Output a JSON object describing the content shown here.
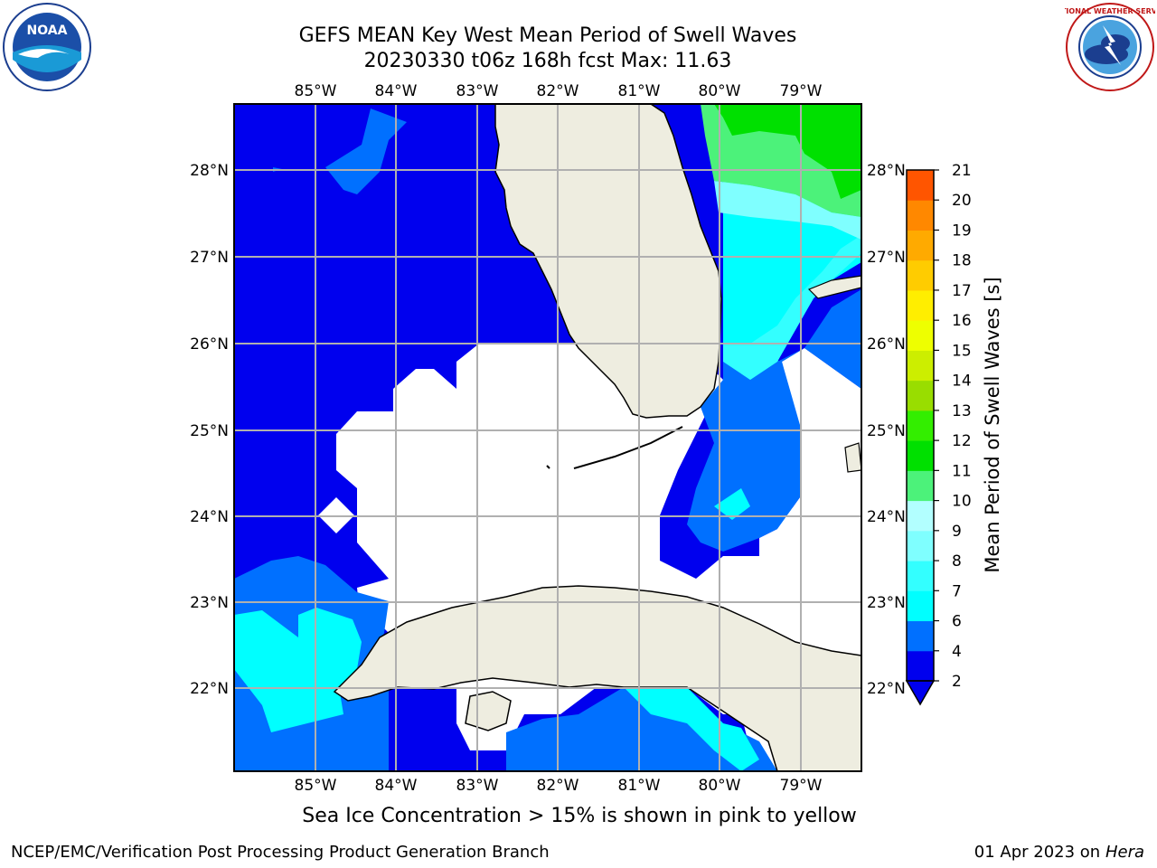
{
  "title": {
    "line1": "GEFS MEAN Key West Mean Period of Swell Waves",
    "line2": "20230330 t06z 168h fcst   Max: 11.63"
  },
  "map": {
    "lon_labels": [
      "85°W",
      "84°W",
      "83°W",
      "82°W",
      "81°W",
      "80°W",
      "79°W"
    ],
    "lat_labels": [
      "28°N",
      "27°N",
      "26°N",
      "25°N",
      "24°N",
      "23°N",
      "22°N"
    ],
    "land_color": "#eeede0",
    "ocean_missing_color": "#ffffff",
    "grid_color": "#b0b0b0"
  },
  "colorbar": {
    "label": "Mean Period of Swell Waves [s]",
    "ticks": [
      "2",
      "4",
      "6",
      "7",
      "8",
      "9",
      "10",
      "11",
      "12",
      "13",
      "14",
      "15",
      "16",
      "17",
      "18",
      "19",
      "20",
      "21"
    ],
    "colors": [
      "#0000ee",
      "#0070ff",
      "#00ffff",
      "#33ffff",
      "#7fffff",
      "#b2ffff",
      "#4cf27a",
      "#00e000",
      "#33ee00",
      "#99dd00",
      "#ccee00",
      "#eeff00",
      "#ffee00",
      "#ffcc00",
      "#ffaa00",
      "#ff8800",
      "#ff5500",
      "#ff2200",
      "#ff0000"
    ]
  },
  "note": "Sea Ice Concentration > 15% is shown in pink to yellow",
  "footer": {
    "left": "NCEP/EMC/Verification Post Processing Product Generation Branch",
    "right_date": "01 Apr 2023 on ",
    "right_machine": "Hera"
  },
  "logos": {
    "noaa_text": "NOAA",
    "nws_text": "NATIONAL WEATHER SERVICE"
  }
}
